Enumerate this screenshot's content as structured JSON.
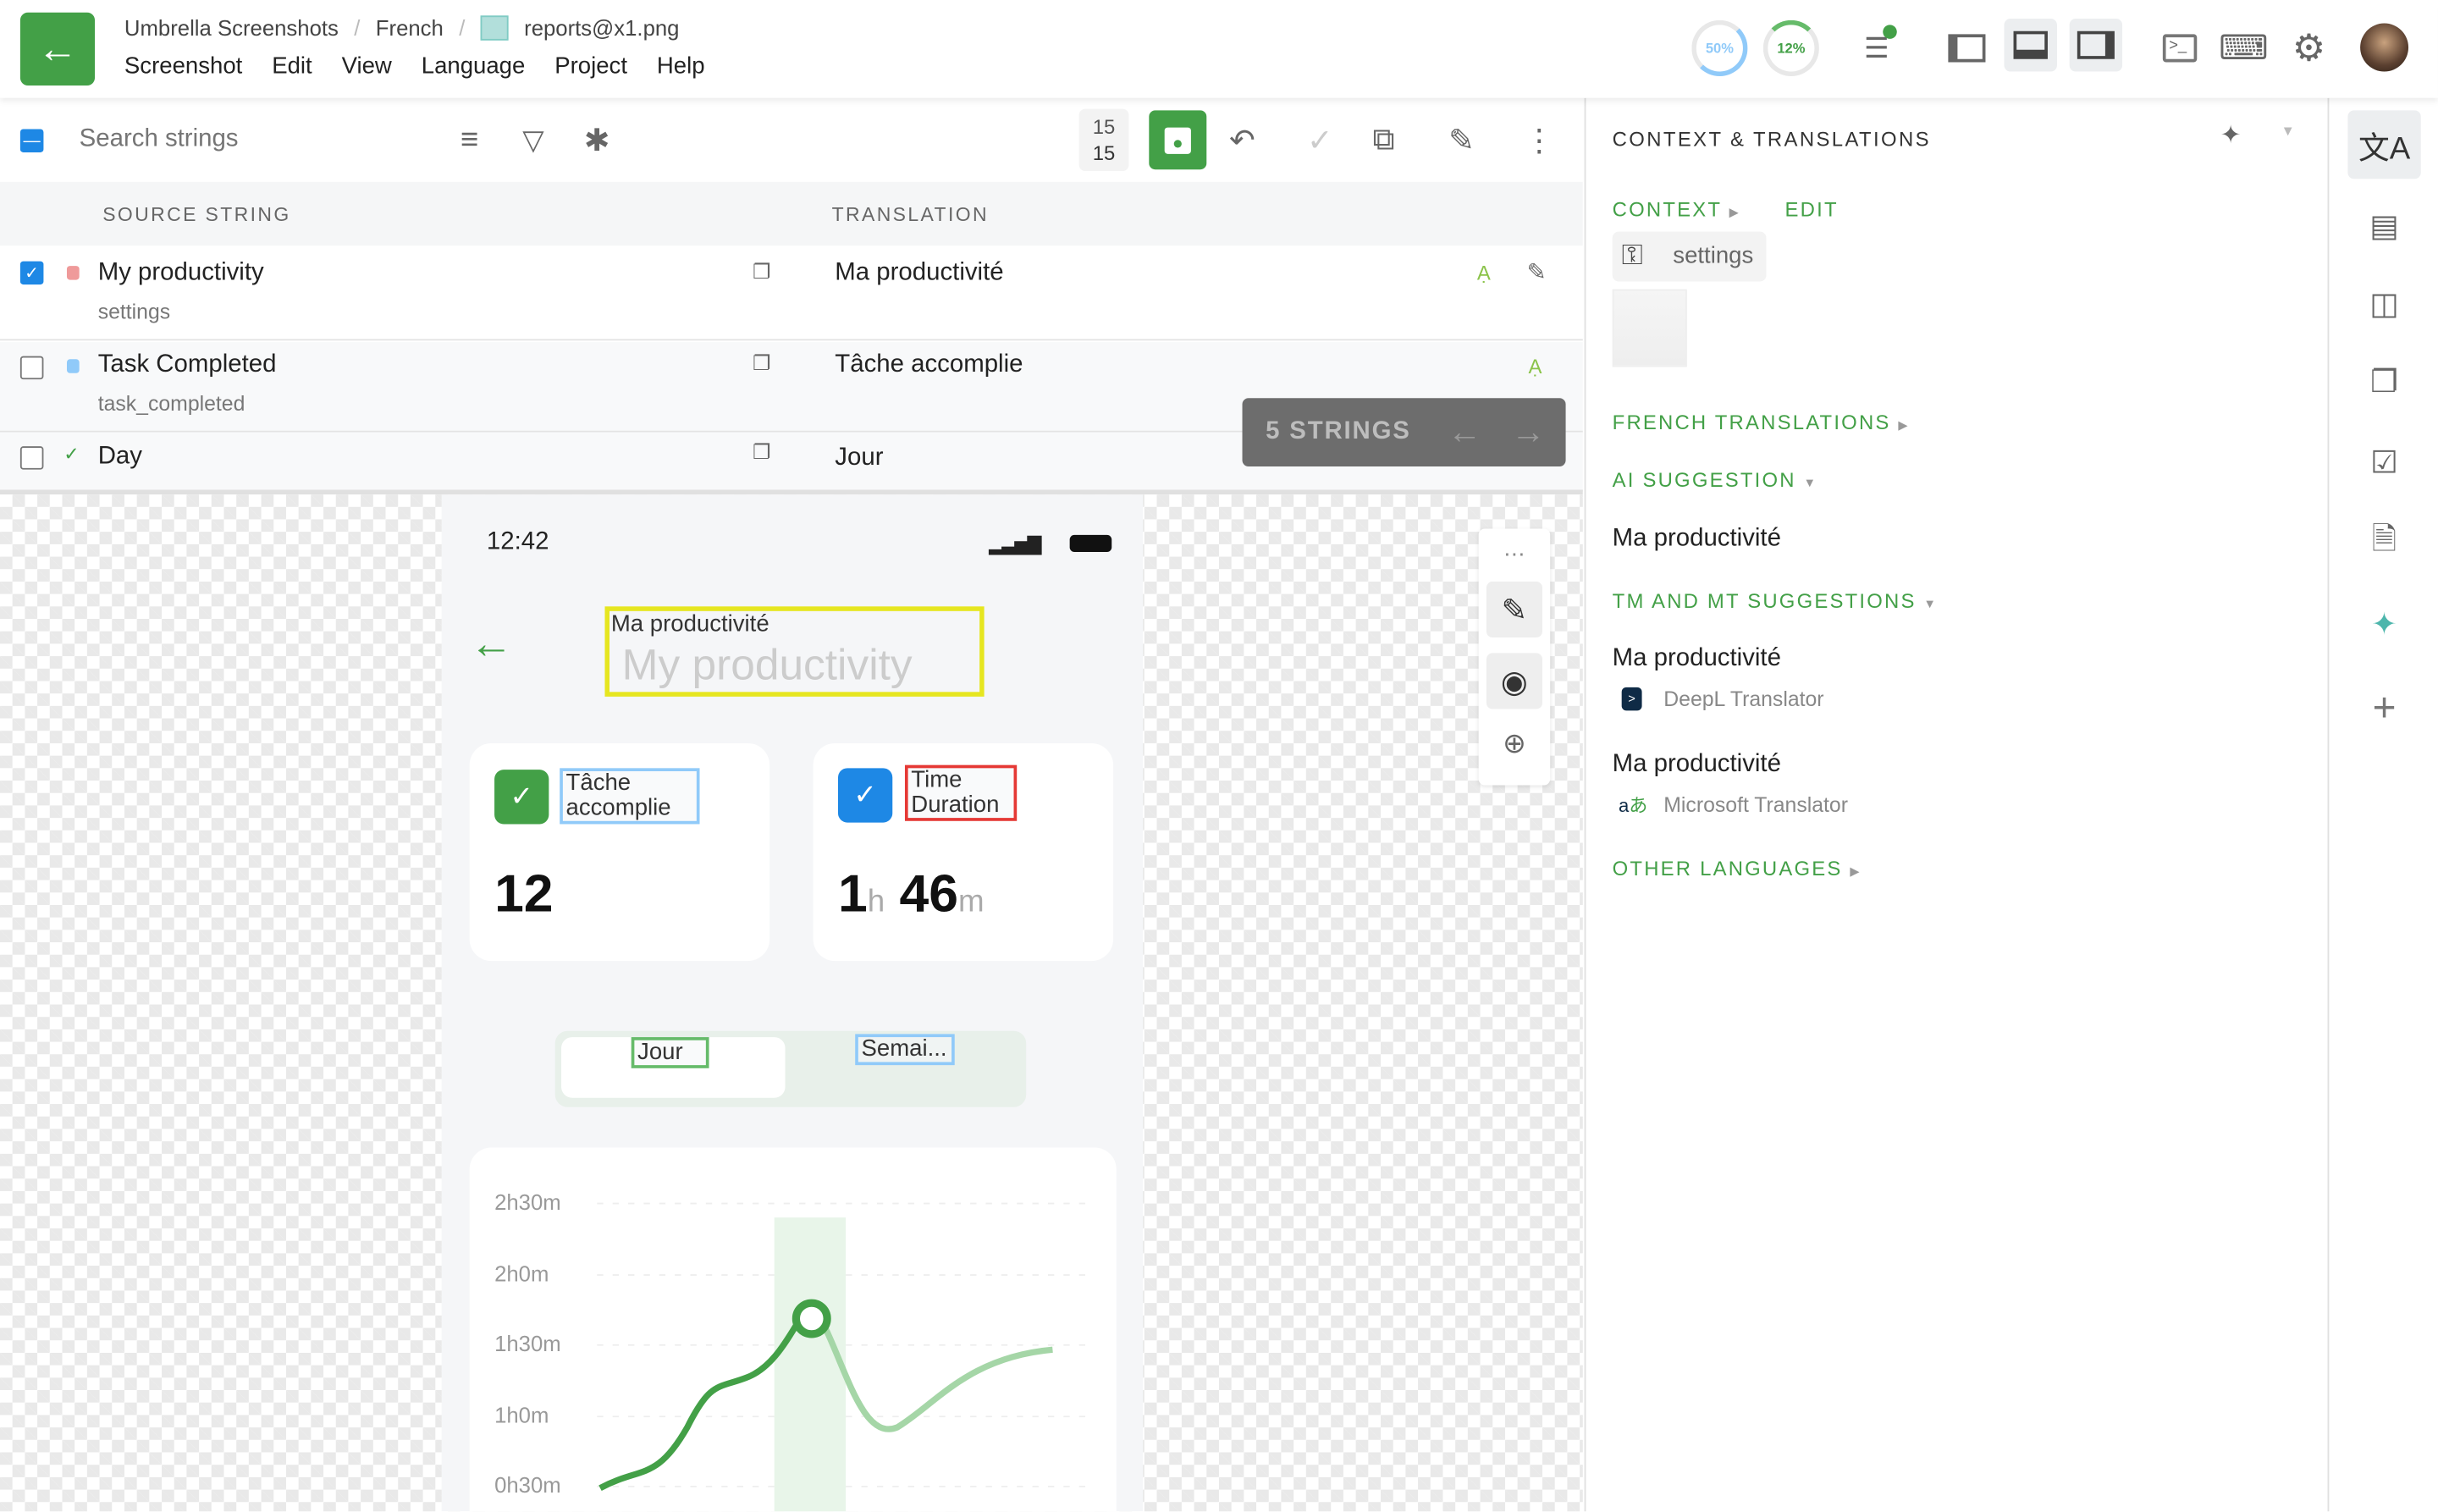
{
  "header": {
    "breadcrumb": [
      "Umbrella Screenshots",
      "French",
      "reports@x1.png"
    ],
    "menu": [
      "Screenshot",
      "Edit",
      "View",
      "Language",
      "Project",
      "Help"
    ],
    "progress_translated": "50%",
    "progress_approved": "12%",
    "colors": {
      "accent": "#43a047",
      "blue": "#1e88e5"
    }
  },
  "toolbar": {
    "search_placeholder": "Search strings",
    "counter_top": "15",
    "counter_bottom": "15"
  },
  "table": {
    "columns": [
      "SOURCE STRING",
      "TRANSLATION"
    ],
    "rows": [
      {
        "source": "My productivity",
        "key": "settings",
        "translation": "Ma productivité",
        "checked": true,
        "status": "untranslated"
      },
      {
        "source": "Task Completed",
        "key": "task_completed",
        "translation": "Tâche accomplie",
        "checked": false,
        "status": "translated"
      },
      {
        "source": "Day",
        "key": "",
        "translation": "Jour",
        "checked": false,
        "status": "approved"
      }
    ],
    "strings_badge": "5 STRINGS"
  },
  "preview": {
    "time": "12:42",
    "title_overlay": "Ma productivité",
    "title_source": "My productivity",
    "card1_label": "Tâche accomplie",
    "card1_value": "12",
    "card2_label_line1": "Time",
    "card2_label_line2": "Duration",
    "card2_hours": "1",
    "card2_h": "h",
    "card2_minutes": "46",
    "card2_m": "m",
    "tab1": "Jour",
    "tab2": "Semai...",
    "y_labels": [
      "2h30m",
      "2h0m",
      "1h30m",
      "1h0m",
      "0h30m"
    ]
  },
  "panel": {
    "title": "CONTEXT & TRANSLATIONS",
    "context_label": "CONTEXT",
    "edit_label": "EDIT",
    "key_chip": "settings",
    "french_translations": "FRENCH TRANSLATIONS",
    "ai_suggestion": "AI SUGGESTION",
    "ai_text": "Ma productivité",
    "tm_mt": "TM AND MT SUGGESTIONS",
    "suggestions": [
      {
        "text": "Ma productivité",
        "engine": "DeepL Translator"
      },
      {
        "text": "Ma productivité",
        "engine": "Microsoft Translator"
      }
    ],
    "other_languages": "OTHER LANGUAGES"
  }
}
